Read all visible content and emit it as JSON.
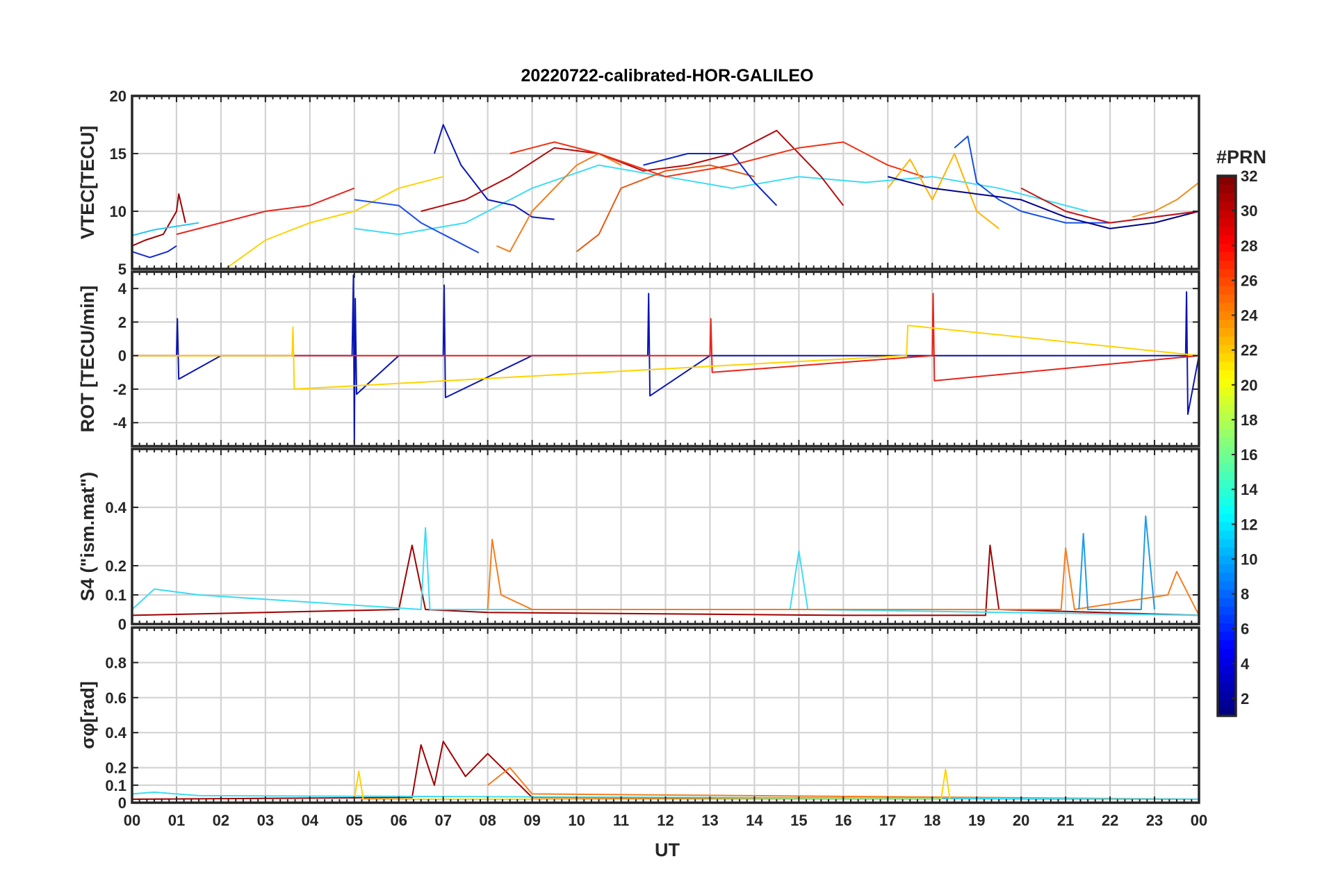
{
  "title": "20220722-calibrated-HOR-GALILEO",
  "colorbar": {
    "label": "#PRN",
    "min": 1,
    "max": 32,
    "tick_values": [
      2,
      4,
      6,
      8,
      10,
      12,
      14,
      16,
      18,
      20,
      22,
      24,
      26,
      28,
      30,
      32
    ],
    "tick_labels": [
      "2",
      "4",
      "6",
      "8",
      "10",
      "12",
      "14",
      "16",
      "18",
      "20",
      "22",
      "24",
      "26",
      "28",
      "30",
      "32"
    ],
    "colormap": "jet"
  },
  "chart_data": [
    {
      "id": "vtec",
      "type": "line",
      "ylabel": "VTEC[TECU]",
      "ylim": [
        5,
        20
      ],
      "yticks": [
        5,
        10,
        15,
        20
      ],
      "ytick_labels": [
        "5",
        "10",
        "15",
        "20"
      ],
      "xlim": [
        0,
        24
      ],
      "grid": true,
      "series": [
        {
          "prn": 31,
          "color": "#a00000",
          "x": [
            0,
            0.3,
            0.7,
            1.0,
            1.05,
            1.2
          ],
          "y": [
            7,
            7.5,
            8,
            10,
            11.5,
            9
          ]
        },
        {
          "prn": 27,
          "color": "#e8231a",
          "x": [
            1.0,
            2.0,
            3.0,
            4.0,
            5.0
          ],
          "y": [
            8,
            9,
            10,
            10.5,
            12
          ]
        },
        {
          "prn": 10,
          "color": "#29c5f0",
          "x": [
            0,
            0.5,
            1.0,
            1.5
          ],
          "y": [
            7.9,
            8.4,
            8.7,
            9
          ]
        },
        {
          "prn": 4,
          "color": "#1428d2",
          "x": [
            0,
            0.4,
            0.8,
            1.0
          ],
          "y": [
            6.5,
            6,
            6.5,
            7
          ]
        },
        {
          "prn": 20,
          "color": "#ffd200",
          "x": [
            2.1,
            3.0,
            4.0,
            5.0,
            6.0,
            7.0
          ],
          "y": [
            5,
            7.5,
            9,
            10,
            12,
            13
          ]
        },
        {
          "prn": 13,
          "color": "#3cdcf5",
          "x": [
            5.0,
            6.0,
            7.5,
            9.0,
            10.5,
            12.0,
            13.5,
            15.0,
            16.5,
            18.0,
            19.5,
            21.5
          ],
          "y": [
            8.5,
            8,
            9,
            12,
            14,
            13,
            12,
            13,
            12.5,
            13,
            12,
            10
          ]
        },
        {
          "prn": 6,
          "color": "#1e4bf0",
          "x": [
            5.0,
            6.0,
            6.5,
            7.0,
            7.5,
            7.8
          ],
          "y": [
            11,
            10.5,
            9,
            8,
            7,
            6.4
          ]
        },
        {
          "prn": 3,
          "color": "#0a14b4",
          "x": [
            6.8,
            7.0,
            7.4,
            8.0,
            8.6,
            9.0,
            9.5
          ],
          "y": [
            15,
            17.5,
            14,
            11,
            10.5,
            9.5,
            9.3
          ]
        },
        {
          "prn": 24,
          "color": "#f57d1e",
          "x": [
            8.2,
            8.5,
            9.0,
            10.0,
            10.5,
            11.0
          ],
          "y": [
            7,
            6.5,
            10,
            14,
            15,
            14
          ]
        },
        {
          "prn": 25,
          "color": "#e65a14",
          "x": [
            10.0,
            10.5,
            11.0,
            12.0,
            13.0,
            14.0
          ],
          "y": [
            6.5,
            8,
            12,
            13.5,
            14,
            13
          ]
        },
        {
          "prn": 30,
          "color": "#b40a0a",
          "x": [
            6.5,
            7.5,
            8.5,
            9.5,
            10.5,
            11.5,
            12.5,
            13.5,
            14.5,
            15.5,
            16.0
          ],
          "y": [
            10,
            11,
            13,
            15.5,
            15,
            13.5,
            14,
            15,
            17,
            13,
            10.5
          ]
        },
        {
          "prn": 27,
          "color": "#f03214",
          "x": [
            8.5,
            9.5,
            10.5,
            12.0,
            13.5,
            15.0,
            16.0,
            17.0,
            17.8
          ],
          "y": [
            15,
            16,
            15,
            13,
            14,
            15.5,
            16,
            14,
            13
          ]
        },
        {
          "prn": 21,
          "color": "#ffb400",
          "x": [
            17.0,
            17.5,
            18.0,
            18.5,
            19.0,
            19.5
          ],
          "y": [
            12,
            14.5,
            11,
            15,
            10,
            8.5
          ]
        },
        {
          "prn": 5,
          "color": "#0a28c8",
          "x": [
            11.5,
            12.5,
            13.5,
            14.0,
            14.5
          ],
          "y": [
            14,
            15,
            15,
            12.5,
            10.5
          ]
        },
        {
          "prn": 7,
          "color": "#1450dc",
          "x": [
            18.5,
            18.8,
            19.0,
            19.5,
            20.0,
            21.0,
            22.0,
            23.0,
            24.0
          ],
          "y": [
            15.5,
            16.5,
            12.5,
            11,
            10,
            9,
            9,
            9.5,
            10
          ]
        },
        {
          "prn": 2,
          "color": "#00008c",
          "x": [
            17.0,
            18.0,
            19.0,
            20.0,
            21.0,
            22.0,
            23.0,
            24.0
          ],
          "y": [
            13,
            12,
            11.5,
            11,
            9.5,
            8.5,
            9,
            10
          ]
        },
        {
          "prn": 29,
          "color": "#c81414",
          "x": [
            20.0,
            21.0,
            22.0,
            23.0,
            24.0
          ],
          "y": [
            12,
            10,
            9,
            9.5,
            10
          ]
        },
        {
          "prn": 23,
          "color": "#f08c1e",
          "x": [
            22.5,
            23.0,
            23.5,
            24.0
          ],
          "y": [
            9.5,
            10,
            11,
            12.5
          ]
        }
      ]
    },
    {
      "id": "rot",
      "type": "line",
      "ylabel": "ROT [TECU/min]",
      "ylim": [
        -5.4,
        5
      ],
      "yticks": [
        -4,
        -2,
        0,
        2,
        4
      ],
      "ytick_labels": [
        "-4",
        "-2",
        "0",
        "2",
        "4"
      ],
      "xlim": [
        0,
        24
      ],
      "grid": true,
      "series": [
        {
          "prn": 1,
          "color": "#0a14b4",
          "x": [
            0,
            1.0,
            1.02,
            1.05,
            2.0,
            4.95,
            4.98,
            5.0,
            5.02,
            5.05,
            6.0,
            7.0,
            7.02,
            7.05,
            9.0,
            11.6,
            11.62,
            11.65,
            13.0,
            18.0,
            23.7,
            23.72,
            23.75,
            24.0
          ],
          "y": [
            0,
            0,
            2.2,
            -1.4,
            0,
            0,
            4.8,
            -5.2,
            3.4,
            -2.3,
            0,
            0,
            4.2,
            -2.5,
            0,
            0,
            3.7,
            -2.4,
            0,
            0,
            0,
            3.8,
            -3.5,
            0
          ]
        },
        {
          "prn": 27,
          "color": "#e8231a",
          "x": [
            0,
            13.0,
            13.02,
            13.05,
            18.0,
            18.02,
            18.05,
            24.0
          ],
          "y": [
            0,
            0,
            2.2,
            -1,
            0,
            3.7,
            -1.5,
            0
          ]
        },
        {
          "prn": 20,
          "color": "#ffd200",
          "x": [
            0,
            3.6,
            3.62,
            3.65,
            17.4,
            17.42,
            17.45,
            24.0
          ],
          "y": [
            0,
            0,
            1.7,
            -2,
            0,
            0,
            1.8,
            0
          ]
        }
      ]
    },
    {
      "id": "s4",
      "type": "line",
      "ylabel": "S4 (\"ism.mat\")",
      "ylim": [
        0,
        0.6
      ],
      "yticks": [
        0,
        0.1,
        0.2,
        0.4
      ],
      "ytick_labels": [
        "0",
        "0.1",
        "0.2",
        "0.4"
      ],
      "xlim": [
        0,
        24
      ],
      "grid": true,
      "series": [
        {
          "prn": 31,
          "color": "#a00000",
          "x": [
            0,
            6.0,
            6.3,
            6.6,
            8.0,
            16.0,
            19.2,
            19.3,
            19.5,
            24.0
          ],
          "y": [
            0.03,
            0.05,
            0.27,
            0.05,
            0.04,
            0.03,
            0.03,
            0.27,
            0.05,
            0.03
          ]
        },
        {
          "prn": 13,
          "color": "#3cdcf5",
          "x": [
            0,
            0.5,
            1.5,
            6.5,
            6.6,
            6.7,
            14.8,
            15.0,
            15.2,
            24.0
          ],
          "y": [
            0.05,
            0.12,
            0.1,
            0.05,
            0.33,
            0.05,
            0.05,
            0.25,
            0.05,
            0.03
          ]
        },
        {
          "prn": 24,
          "color": "#f57d1e",
          "x": [
            8.0,
            8.1,
            8.3,
            9.0,
            20.9,
            21.0,
            21.2,
            23.3,
            23.5,
            24.0
          ],
          "y": [
            0.05,
            0.29,
            0.1,
            0.05,
            0.05,
            0.26,
            0.05,
            0.1,
            0.18,
            0.03
          ]
        },
        {
          "prn": 9,
          "color": "#1e9be6",
          "x": [
            21.3,
            21.4,
            21.5,
            22.7,
            22.8,
            23.0
          ],
          "y": [
            0.05,
            0.31,
            0.05,
            0.05,
            0.37,
            0.05
          ]
        }
      ]
    },
    {
      "id": "sigma_phi",
      "type": "line",
      "ylabel": "σφ[rad]",
      "ylim": [
        0,
        1
      ],
      "yticks": [
        0,
        0.1,
        0.2,
        0.4,
        0.6,
        0.8
      ],
      "ytick_labels": [
        "0",
        "0.1",
        "0.2",
        "0.4",
        "0.6",
        "0.8"
      ],
      "xlim": [
        0,
        24
      ],
      "grid": true,
      "series": [
        {
          "prn": 31,
          "color": "#a00000",
          "x": [
            0,
            6.3,
            6.5,
            6.8,
            7.0,
            7.5,
            8.0,
            9.0,
            24.0
          ],
          "y": [
            0.02,
            0.03,
            0.33,
            0.1,
            0.35,
            0.15,
            0.28,
            0.03,
            0.02
          ]
        },
        {
          "prn": 24,
          "color": "#f57d1e",
          "x": [
            8.0,
            8.5,
            9.0,
            24.0
          ],
          "y": [
            0.1,
            0.2,
            0.05,
            0.02
          ]
        },
        {
          "prn": 13,
          "color": "#3cdcf5",
          "x": [
            0,
            0.5,
            1.5,
            24.0
          ],
          "y": [
            0.05,
            0.06,
            0.04,
            0.02
          ]
        },
        {
          "prn": 20,
          "color": "#ffd200",
          "x": [
            5.0,
            5.1,
            5.2,
            18.2,
            18.3,
            18.4
          ],
          "y": [
            0.02,
            0.18,
            0.02,
            0.02,
            0.19,
            0.02
          ]
        }
      ]
    }
  ],
  "xaxis": {
    "label": "UT",
    "ticks": [
      0,
      1,
      2,
      3,
      4,
      5,
      6,
      7,
      8,
      9,
      10,
      11,
      12,
      13,
      14,
      15,
      16,
      17,
      18,
      19,
      20,
      21,
      22,
      23,
      24
    ],
    "tick_labels": [
      "00",
      "01",
      "02",
      "03",
      "04",
      "05",
      "06",
      "07",
      "08",
      "09",
      "10",
      "11",
      "12",
      "13",
      "14",
      "15",
      "16",
      "17",
      "18",
      "19",
      "20",
      "21",
      "22",
      "23",
      "00"
    ]
  }
}
